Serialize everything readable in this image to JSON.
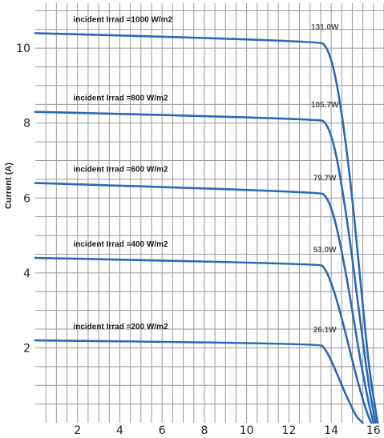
{
  "chart_data": {
    "type": "line",
    "ylabel": "Current (A)",
    "xlabel": "",
    "xlim": [
      0,
      16.5
    ],
    "ylim": [
      0,
      11.2
    ],
    "x_ticks": [
      2,
      4,
      6,
      8,
      10,
      12,
      14,
      16
    ],
    "y_ticks": [
      2,
      4,
      6,
      8,
      10
    ],
    "grid": true,
    "line_color": "#2a6ab5",
    "series": [
      {
        "name": "incident Irrad =1000 W/m2",
        "power_label": "131.0W",
        "x": [
          0,
          13.4,
          13.8,
          14.2,
          14.6,
          15.0,
          15.4,
          15.8,
          16.2
        ],
        "y": [
          10.4,
          10.2,
          10.05,
          9.3,
          7.9,
          6.0,
          3.7,
          1.4,
          0
        ]
      },
      {
        "name": "incident Irrad =800 W/m2",
        "power_label": "105.7W",
        "x": [
          0,
          13.4,
          13.8,
          14.2,
          14.6,
          15.0,
          15.4,
          15.8,
          16.1
        ],
        "y": [
          8.3,
          8.12,
          8.0,
          7.3,
          6.0,
          4.4,
          2.6,
          0.9,
          0
        ]
      },
      {
        "name": "incident Irrad =600 W/m2",
        "power_label": "79.7W",
        "x": [
          0,
          13.4,
          13.8,
          14.2,
          14.6,
          15.0,
          15.4,
          15.8,
          16.0
        ],
        "y": [
          6.4,
          6.17,
          6.05,
          5.4,
          4.3,
          3.0,
          1.6,
          0.45,
          0
        ]
      },
      {
        "name": "incident Irrad =400 W/m2",
        "power_label": "53.0W",
        "x": [
          0,
          13.4,
          13.7,
          14.1,
          14.5,
          14.9,
          15.3,
          15.7,
          15.9
        ],
        "y": [
          4.4,
          4.25,
          4.15,
          3.6,
          2.8,
          1.9,
          1.0,
          0.25,
          0
        ]
      },
      {
        "name": "incident Irrad =200 W/m2",
        "power_label": "26.1W",
        "x": [
          0,
          13.4,
          13.7,
          14.1,
          14.5,
          14.9,
          15.2,
          15.5
        ],
        "y": [
          2.2,
          2.12,
          2.0,
          1.55,
          1.0,
          0.5,
          0.15,
          0
        ]
      }
    ]
  }
}
